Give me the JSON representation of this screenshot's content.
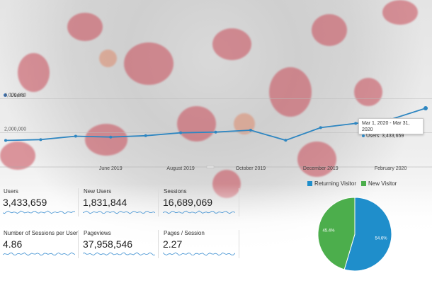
{
  "colors": {
    "line": "#2e86c1",
    "returning": "#1f8ecb",
    "new": "#4cae4c"
  },
  "chart_data": {
    "type": "line",
    "legend": "Users",
    "y_tick_labels": [
      "4,000,000",
      "2,000,000"
    ],
    "y_ticks": [
      4000000,
      2000000
    ],
    "ylim": [
      0,
      4800000
    ],
    "x_labels": [
      "June 2019",
      "August 2019",
      "October 2019",
      "December 2019",
      "February 2020"
    ],
    "series": [
      {
        "name": "Users",
        "x": [
          "Mar 2019",
          "Apr 2019",
          "May 2019",
          "Jun 2019",
          "Jul 2019",
          "Aug 2019",
          "Sep 2019",
          "Oct 2019",
          "Nov 2019",
          "Dec 2019",
          "Jan 2020",
          "Feb 2020",
          "Mar 2020"
        ],
        "values": [
          1550000,
          1600000,
          1800000,
          1750000,
          1830000,
          2000000,
          2040000,
          2150000,
          1560000,
          2300000,
          2550000,
          2780000,
          3433659
        ]
      }
    ],
    "tooltip": {
      "title": "Mar 1, 2020 - Mar 31, 2020",
      "value": "Users: 3,433,659"
    }
  },
  "metrics": [
    {
      "label": "Users",
      "value": "3,433,659"
    },
    {
      "label": "New Users",
      "value": "1,831,844"
    },
    {
      "label": "Sessions",
      "value": "16,689,069"
    },
    {
      "label": "Number of Sessions per User",
      "value": "4.86"
    },
    {
      "label": "Pageviews",
      "value": "37,958,546"
    },
    {
      "label": "Pages / Session",
      "value": "2.27"
    }
  ],
  "pie": {
    "legend": [
      {
        "name": "Returning Visitor"
      },
      {
        "name": "New Visitor"
      }
    ],
    "slices": [
      {
        "name": "Returning Visitor",
        "percent": 54.6,
        "label": "54.6%"
      },
      {
        "name": "New Visitor",
        "percent": 45.4,
        "label": "45.4%"
      }
    ]
  }
}
